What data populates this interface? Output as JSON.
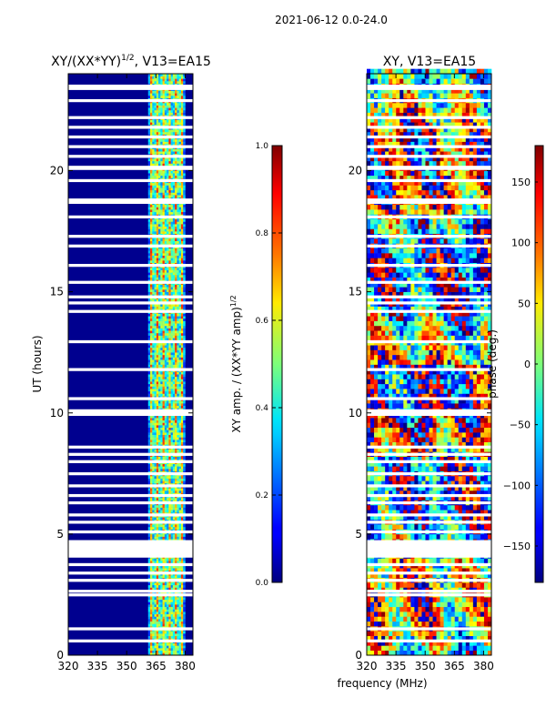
{
  "suptitle": "2021-06-12 0.0-24.0",
  "chart_data": [
    {
      "type": "heatmap",
      "title_main": "XY/(XX*YY)",
      "title_sup": "1/2",
      "title_rest": ", V13=EA15",
      "xlabel": "frequency (MHz)",
      "ylabel": "UT (hours)",
      "xlim": [
        320,
        384
      ],
      "ylim": [
        0,
        24
      ],
      "xticks": [
        320,
        335,
        350,
        365,
        380
      ],
      "yticks": [
        0,
        5,
        10,
        15,
        20
      ],
      "active_band_mhz": [
        361,
        380
      ],
      "colorbar": {
        "label_main": "XY amp. / (XX*YY amp)",
        "label_sup": "1/2",
        "range": [
          0.0,
          1.0
        ],
        "ticks": [
          "0.0",
          "0.2",
          "0.4",
          "0.6",
          "0.8",
          "1.0"
        ],
        "colormap": "jet"
      }
    },
    {
      "type": "heatmap",
      "title": "XY, V13=EA15",
      "xlim": [
        320,
        384
      ],
      "ylim": [
        0,
        24
      ],
      "xticks": [
        320,
        335,
        350,
        365,
        380
      ],
      "yticks": [
        0,
        5,
        10,
        15,
        20
      ],
      "colorbar": {
        "label": "phase (deg.)",
        "range": [
          -180,
          180
        ],
        "ticks": [
          150,
          100,
          50,
          0,
          -50,
          -100,
          -150
        ],
        "tick_labels": [
          "150",
          "100",
          "50",
          "0",
          "−50",
          "−100",
          "−150"
        ],
        "colormap": "jet"
      }
    }
  ],
  "blank_rows_ut": [
    0.55,
    1.05,
    2.45,
    2.6,
    3.05,
    3.35,
    3.7,
    4.05,
    4.15,
    4.2,
    4.25,
    4.3,
    4.35,
    4.4,
    4.45,
    4.5,
    4.55,
    4.6,
    4.65,
    5.05,
    5.45,
    5.75,
    6.25,
    6.55,
    6.95,
    7.45,
    7.95,
    8.25,
    8.55,
    9.9,
    10.0,
    10.05,
    10.55,
    11.75,
    12.9,
    14.15,
    14.5,
    14.75,
    15.35,
    16.05,
    16.85,
    17.25,
    18.05,
    18.65,
    18.75,
    19.55,
    20.05,
    20.1,
    20.55,
    20.95,
    21.35,
    21.75,
    22.15,
    22.85,
    23.35,
    23.45
  ]
}
